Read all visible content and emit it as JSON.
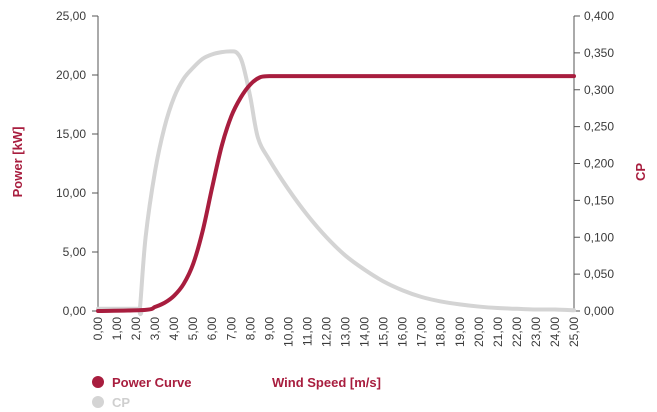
{
  "chart_data": {
    "type": "line",
    "xlabel": "Wind Speed [m/s]",
    "ylabel_left": "Power [kW]",
    "ylabel_right": "CP",
    "xlim": [
      0,
      25
    ],
    "ylim_left": [
      0,
      25
    ],
    "ylim_right": [
      0,
      0.4
    ],
    "grid": false,
    "legend_placement": "bottom-left",
    "x_ticks": [
      "0,00",
      "1,00",
      "2,00",
      "3,00",
      "4,00",
      "5,00",
      "6,00",
      "7,00",
      "8,00",
      "9,00",
      "10,00",
      "11,00",
      "12,00",
      "13,00",
      "14,00",
      "15,00",
      "16,00",
      "17,00",
      "18,00",
      "19,00",
      "20,00",
      "21,00",
      "22,00",
      "23,00",
      "24,00",
      "25,00"
    ],
    "y_ticks_left": [
      "0,00",
      "5,00",
      "10,00",
      "15,00",
      "20,00",
      "25,00"
    ],
    "y_ticks_right": [
      "0,000",
      "0,050",
      "0,100",
      "0,150",
      "0,200",
      "0,250",
      "0,300",
      "0,350",
      "0,400"
    ],
    "series": [
      {
        "name": "Power Curve",
        "axis": "left",
        "color": "#a81d3e",
        "x": [
          0,
          2.5,
          3,
          3.5,
          4,
          4.5,
          5,
          5.5,
          6,
          6.5,
          7,
          7.5,
          8,
          8.5,
          9,
          10,
          12,
          15,
          20,
          25
        ],
        "y": [
          0,
          0.1,
          0.35,
          0.7,
          1.3,
          2.3,
          4.0,
          6.8,
          10.5,
          14.0,
          16.5,
          18.1,
          19.2,
          19.8,
          19.9,
          19.9,
          19.9,
          19.9,
          19.9,
          19.9
        ]
      },
      {
        "name": "CP",
        "axis": "right",
        "color": "#d4d4d4",
        "x": [
          0,
          2.1,
          2.2,
          2.5,
          3,
          3.5,
          4,
          4.5,
          5,
          5.5,
          6,
          6.5,
          7,
          7.3,
          7.6,
          8,
          8.4,
          9,
          10,
          11,
          12,
          13,
          14,
          15,
          16,
          17,
          18,
          19,
          20,
          21,
          22,
          23,
          24,
          25
        ],
        "y": [
          0.003,
          0.003,
          0.003,
          0.1,
          0.19,
          0.25,
          0.29,
          0.315,
          0.33,
          0.342,
          0.348,
          0.351,
          0.352,
          0.35,
          0.335,
          0.29,
          0.235,
          0.205,
          0.165,
          0.13,
          0.1,
          0.075,
          0.056,
          0.04,
          0.028,
          0.019,
          0.013,
          0.009,
          0.006,
          0.004,
          0.003,
          0.002,
          0.002,
          0.001
        ]
      }
    ]
  }
}
